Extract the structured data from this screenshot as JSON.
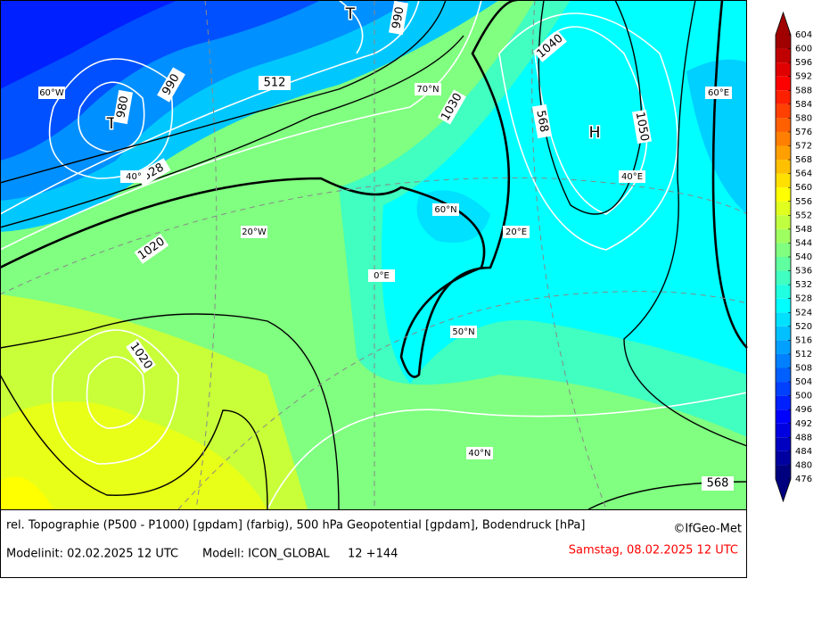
{
  "map": {
    "pressure_centers": [
      "T",
      "T",
      "H"
    ],
    "contour_labels": [
      "990",
      "980",
      "990",
      "512",
      "1030",
      "1040",
      "568",
      "1050",
      "528",
      "1020",
      "1020",
      "568"
    ],
    "graticule_labels": [
      "60°W",
      "70°N",
      "60°E",
      "40°",
      "40°E",
      "20°W",
      "60°N",
      "20°E",
      "0°E",
      "50°N",
      "40°N"
    ]
  },
  "colorbar": {
    "ticks": [
      476,
      480,
      484,
      488,
      492,
      496,
      500,
      504,
      508,
      512,
      516,
      520,
      524,
      528,
      532,
      536,
      540,
      544,
      548,
      552,
      556,
      560,
      564,
      568,
      572,
      576,
      580,
      584,
      588,
      592,
      596,
      600,
      604
    ],
    "colors": [
      "#00007f",
      "#0000a0",
      "#0000c0",
      "#0000e0",
      "#0000ff",
      "#0020ff",
      "#0040ff",
      "#0060ff",
      "#0080ff",
      "#00a0ff",
      "#00c0ff",
      "#00e0ff",
      "#00ffff",
      "#20ffe0",
      "#40ffc0",
      "#60ffa0",
      "#80ff80",
      "#a0ff60",
      "#c0ff40",
      "#e0ff20",
      "#ffff00",
      "#ffe000",
      "#ffc000",
      "#ffa000",
      "#ff8000",
      "#ff6000",
      "#ff4000",
      "#ff2000",
      "#ff0000",
      "#e00000",
      "#c00000",
      "#a00000"
    ]
  },
  "footer": {
    "title": "rel. Topographie (P500 - P1000) [gpdam] (farbig), 500 hPa Geopotential [gpdam], Bodendruck [hPa]",
    "copyright": "©IfGeo-Met",
    "modelinit": "Modelinit: 02.02.2025 12 UTC",
    "model": "Modell: ICON_GLOBAL",
    "run": "12 +144",
    "valid": "Samstag, 08.02.2025 12 UTC"
  }
}
